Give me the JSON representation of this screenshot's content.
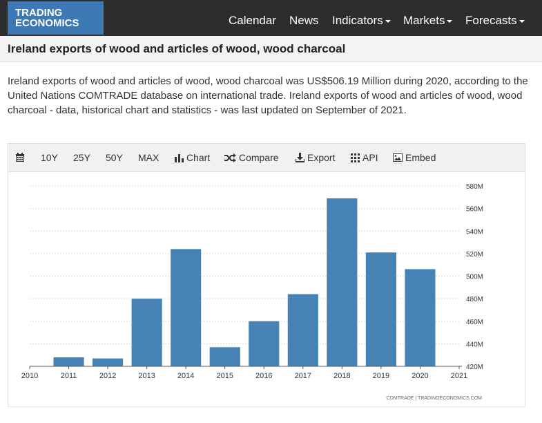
{
  "brand": {
    "line1": "TRADING",
    "line2": "ECONOMICS"
  },
  "nav": [
    {
      "label": "Calendar",
      "dropdown": false
    },
    {
      "label": "News",
      "dropdown": false
    },
    {
      "label": "Indicators",
      "dropdown": true
    },
    {
      "label": "Markets",
      "dropdown": true
    },
    {
      "label": "Forecasts",
      "dropdown": true
    }
  ],
  "page": {
    "title": "Ireland exports of wood and articles of wood, wood charcoal",
    "description": "Ireland exports of wood and articles of wood, wood charcoal was US$506.19 Million during 2020, according to the United Nations COMTRADE database on international trade. Ireland exports of wood and articles of wood, wood charcoal - data, historical chart and statistics - was last updated on September of 2021."
  },
  "toolbar": {
    "calendar_icon": "calendar-icon",
    "range_10y": "10Y",
    "range_25y": "25Y",
    "range_50y": "50Y",
    "range_max": "MAX",
    "chart": "Chart",
    "compare": "Compare",
    "export": "Export",
    "api": "API",
    "embed": "Embed"
  },
  "chart_data": {
    "type": "bar",
    "title": "",
    "xlabel": "",
    "ylabel": "",
    "categories": [
      "2011",
      "2012",
      "2013",
      "2014",
      "2015",
      "2016",
      "2017",
      "2018",
      "2019",
      "2020"
    ],
    "values": [
      428,
      427,
      480,
      524,
      437,
      460,
      484,
      569,
      521,
      506.19
    ],
    "unit_suffix": "M",
    "ylim": [
      420,
      580
    ],
    "yticks": [
      420,
      440,
      460,
      480,
      500,
      520,
      540,
      560,
      580
    ],
    "xticks": [
      "2010",
      "2011",
      "2012",
      "2013",
      "2014",
      "2015",
      "2016",
      "2017",
      "2018",
      "2019",
      "2020",
      "2021"
    ],
    "xlim": [
      2010,
      2021
    ],
    "grid": "horizontal-dashed",
    "yaxis_position": "right",
    "bar_color": "#4682b4",
    "source": "COMTRADE | TRADINGECONOMICS.COM"
  }
}
